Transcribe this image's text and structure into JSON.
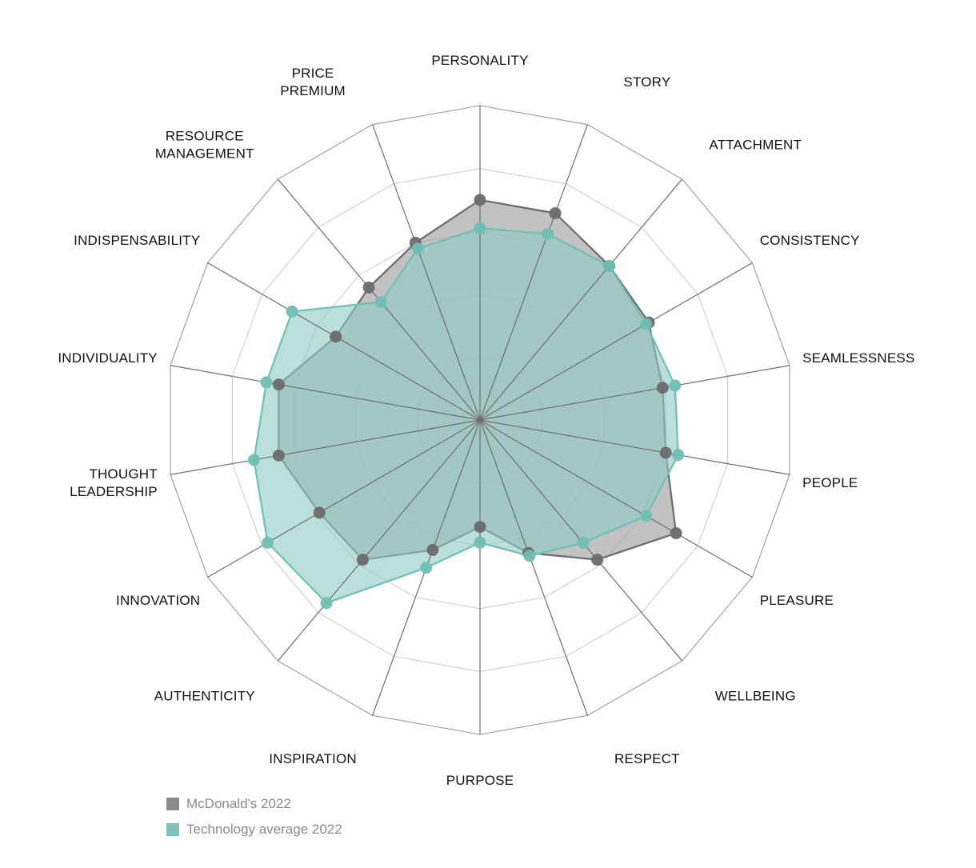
{
  "chart_data": {
    "type": "radar",
    "axes": [
      [
        "PERSONALITY"
      ],
      [
        "STORY"
      ],
      [
        "ATTACHMENT"
      ],
      [
        "CONSISTENCY"
      ],
      [
        "SEAMLESSNESS"
      ],
      [
        "PEOPLE"
      ],
      [
        "PLEASURE"
      ],
      [
        "WELLBEING"
      ],
      [
        "RESPECT"
      ],
      [
        "PURPOSE"
      ],
      [
        "INSPIRATION"
      ],
      [
        "AUTHENTICITY"
      ],
      [
        "INNOVATION"
      ],
      [
        "THOUGHT",
        "LEADERSHIP"
      ],
      [
        "INDIVIDUALITY"
      ],
      [
        "INDISPENSABILITY"
      ],
      [
        "RESOURCE",
        "MANAGEMENT"
      ],
      [
        "PRICE",
        "PREMIUM"
      ]
    ],
    "rlim": [
      0,
      5
    ],
    "ring_count": 5,
    "series": [
      {
        "name": "McDonald's 2022",
        "color": "#6b6b6b",
        "fill": "#9a9a9a",
        "values": [
          3.5,
          3.5,
          3.2,
          3.1,
          2.95,
          3.0,
          3.6,
          2.9,
          2.25,
          1.7,
          2.2,
          2.9,
          2.95,
          3.25,
          3.25,
          2.65,
          2.75,
          3.0
        ]
      },
      {
        "name": "Technology average 2022",
        "color": "#6fbfb5",
        "fill": "#8dcbc3",
        "values": [
          3.05,
          3.15,
          3.2,
          3.05,
          3.15,
          3.2,
          3.05,
          2.55,
          2.3,
          1.95,
          2.5,
          3.8,
          3.9,
          3.65,
          3.45,
          3.45,
          2.45,
          2.9
        ]
      }
    ],
    "legend_position": "bottom-left",
    "grid": true
  }
}
